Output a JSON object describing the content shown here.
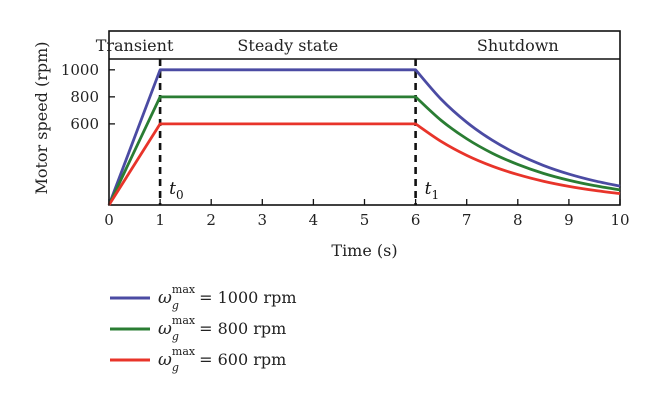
{
  "chart_data": {
    "type": "line",
    "xlabel": "Time (s)",
    "ylabel": "Motor speed (rpm)",
    "xlim": [
      0,
      10
    ],
    "ylim": [
      0,
      1080
    ],
    "xticks": [
      0,
      1,
      2,
      3,
      4,
      5,
      6,
      7,
      8,
      9,
      10
    ],
    "yticks": [
      600,
      800,
      1000
    ],
    "grid": false,
    "legend_position": "below",
    "phases": [
      {
        "label": "Transient",
        "x_start": 0,
        "x_end": 1
      },
      {
        "label": "Steady state",
        "x_start": 1,
        "x_end": 6
      },
      {
        "label": "Shutdown",
        "x_start": 6,
        "x_end": 10
      }
    ],
    "markers": [
      {
        "label": "t",
        "subscript": "0",
        "x": 1
      },
      {
        "label": "t",
        "subscript": "1",
        "x": 6
      }
    ],
    "series": [
      {
        "name": "= 1000 rpm",
        "symbol": "ω",
        "symbol_sub": "g",
        "symbol_sup": "max",
        "color": "#4b4ba3",
        "x": [
          0,
          1,
          6,
          6.5,
          7,
          7.5,
          8,
          8.5,
          9,
          9.5,
          10
        ],
        "values": [
          0,
          1000,
          1000,
          782,
          612,
          479,
          375,
          293,
          229,
          179,
          140
        ]
      },
      {
        "name": "= 800 rpm",
        "symbol": "ω",
        "symbol_sub": "g",
        "symbol_sup": "max",
        "color": "#2a7d33",
        "x": [
          0,
          1,
          6,
          6.5,
          7,
          7.5,
          8,
          8.5,
          9,
          9.5,
          10
        ],
        "values": [
          0,
          800,
          800,
          626,
          490,
          383,
          300,
          234,
          183,
          143,
          112
        ]
      },
      {
        "name": "= 600 rpm",
        "symbol": "ω",
        "symbol_sub": "g",
        "symbol_sup": "max",
        "color": "#e8342a",
        "x": [
          0,
          1,
          6,
          6.5,
          7,
          7.5,
          8,
          8.5,
          9,
          9.5,
          10
        ],
        "values": [
          0,
          600,
          600,
          470,
          367,
          287,
          225,
          176,
          138,
          108,
          84
        ]
      }
    ]
  }
}
